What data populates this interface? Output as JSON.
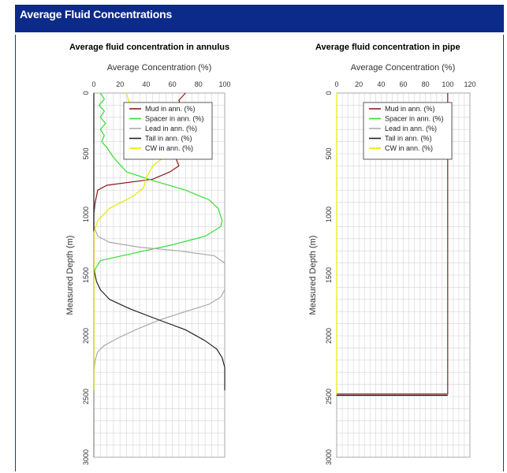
{
  "header": {
    "title": "Average Fluid Concentrations"
  },
  "colors": {
    "header_bg": "#0c2a8a",
    "mud": "#8b1a1a",
    "spacer": "#33dd33",
    "lead": "#aaaaaa",
    "tail": "#222222",
    "cw": "#e8e800",
    "grid": "#d4d4d4"
  },
  "chart_data": [
    {
      "type": "line",
      "title": "Average fluid concentration in annulus",
      "xlabel": "Average Concentration (%)",
      "ylabel": "Measured Depth (m)",
      "xlim": [
        0,
        100
      ],
      "ylim": [
        3000,
        0
      ],
      "xticks": [
        "0",
        "20",
        "40",
        "60",
        "80",
        "100"
      ],
      "yticks": [
        "0",
        "500",
        "1000",
        "1500",
        "2000",
        "2500",
        "3000"
      ],
      "grid": true,
      "legend_position": "top-right",
      "series": [
        {
          "name": "Mud in ann. (%)",
          "color": "#8b1a1a",
          "points": [
            [
              70,
              0
            ],
            [
              65,
              60
            ],
            [
              68,
              150
            ],
            [
              60,
              250
            ],
            [
              70,
              350
            ],
            [
              65,
              450
            ],
            [
              62,
              520
            ],
            [
              65,
              600
            ],
            [
              58,
              650
            ],
            [
              45,
              710
            ],
            [
              10,
              760
            ],
            [
              3,
              800
            ],
            [
              1,
              900
            ],
            [
              0,
              1000
            ],
            [
              0,
              3000
            ]
          ]
        },
        {
          "name": "Spacer in ann. (%)",
          "color": "#33dd33",
          "points": [
            [
              5,
              0
            ],
            [
              8,
              50
            ],
            [
              4,
              100
            ],
            [
              8,
              150
            ],
            [
              5,
              200
            ],
            [
              9,
              250
            ],
            [
              5,
              300
            ],
            [
              8,
              350
            ],
            [
              6,
              400
            ],
            [
              10,
              450
            ],
            [
              15,
              530
            ],
            [
              25,
              650
            ],
            [
              45,
              720
            ],
            [
              70,
              800
            ],
            [
              88,
              880
            ],
            [
              95,
              950
            ],
            [
              98,
              1050
            ],
            [
              97,
              1100
            ],
            [
              85,
              1180
            ],
            [
              60,
              1250
            ],
            [
              30,
              1320
            ],
            [
              5,
              1380
            ],
            [
              1,
              1450
            ],
            [
              0,
              1500
            ],
            [
              0,
              3000
            ]
          ]
        },
        {
          "name": "Lead in ann. (%)",
          "color": "#aaaaaa",
          "points": [
            [
              0,
              0
            ],
            [
              0,
              1100
            ],
            [
              3,
              1180
            ],
            [
              12,
              1230
            ],
            [
              35,
              1270
            ],
            [
              65,
              1300
            ],
            [
              92,
              1340
            ],
            [
              100,
              1400
            ],
            [
              100,
              1620
            ],
            [
              97,
              1680
            ],
            [
              88,
              1740
            ],
            [
              70,
              1800
            ],
            [
              50,
              1870
            ],
            [
              32,
              1950
            ],
            [
              18,
              2020
            ],
            [
              8,
              2080
            ],
            [
              3,
              2130
            ],
            [
              1,
              2200
            ],
            [
              0,
              2300
            ],
            [
              0,
              3000
            ]
          ]
        },
        {
          "name": "Tail in ann. (%)",
          "color": "#222222",
          "points": [
            [
              0,
              0
            ],
            [
              0,
              1450
            ],
            [
              2,
              1550
            ],
            [
              5,
              1620
            ],
            [
              12,
              1700
            ],
            [
              28,
              1780
            ],
            [
              50,
              1870
            ],
            [
              70,
              1950
            ],
            [
              85,
              2040
            ],
            [
              94,
              2110
            ],
            [
              98,
              2180
            ],
            [
              100,
              2260
            ],
            [
              100,
              2450
            ]
          ]
        },
        {
          "name": "CW in ann. (%)",
          "color": "#e8e800",
          "points": [
            [
              25,
              0
            ],
            [
              27,
              80
            ],
            [
              28,
              150
            ],
            [
              38,
              200
            ],
            [
              48,
              230
            ],
            [
              60,
              260
            ],
            [
              72,
              300
            ],
            [
              85,
              340
            ],
            [
              78,
              380
            ],
            [
              68,
              420
            ],
            [
              57,
              500
            ],
            [
              45,
              600
            ],
            [
              40,
              700
            ],
            [
              38,
              780
            ],
            [
              30,
              850
            ],
            [
              12,
              950
            ],
            [
              3,
              1050
            ],
            [
              0,
              1150
            ],
            [
              0,
              2450
            ]
          ]
        }
      ]
    },
    {
      "type": "line",
      "title": "Average fluid concentration in pipe",
      "xlabel": "Average Concentration (%)",
      "ylabel": "Measured Depth (m)",
      "xlim": [
        0,
        120
      ],
      "ylim": [
        3000,
        0
      ],
      "xticks": [
        "0",
        "20",
        "40",
        "60",
        "80",
        "100",
        "120"
      ],
      "yticks": [
        "0",
        "500",
        "1000",
        "1500",
        "2000",
        "2500",
        "3000"
      ],
      "grid": true,
      "legend_position": "top-right",
      "series": [
        {
          "name": "Mud in ann. (%)",
          "color": "#8b1a1a",
          "points": [
            [
              100,
              0
            ],
            [
              100,
              2480
            ],
            [
              0,
              2480
            ]
          ]
        },
        {
          "name": "Spacer in ann. (%)",
          "color": "#33dd33",
          "points": []
        },
        {
          "name": "Lead in ann. (%)",
          "color": "#aaaaaa",
          "points": []
        },
        {
          "name": "Tail in ann. (%)",
          "color": "#222222",
          "points": [
            [
              0,
              2490
            ],
            [
              100,
              2490
            ]
          ]
        },
        {
          "name": "CW in ann. (%)",
          "color": "#e8e800",
          "points": [
            [
              0,
              0
            ],
            [
              0,
              2480
            ]
          ]
        }
      ]
    }
  ]
}
